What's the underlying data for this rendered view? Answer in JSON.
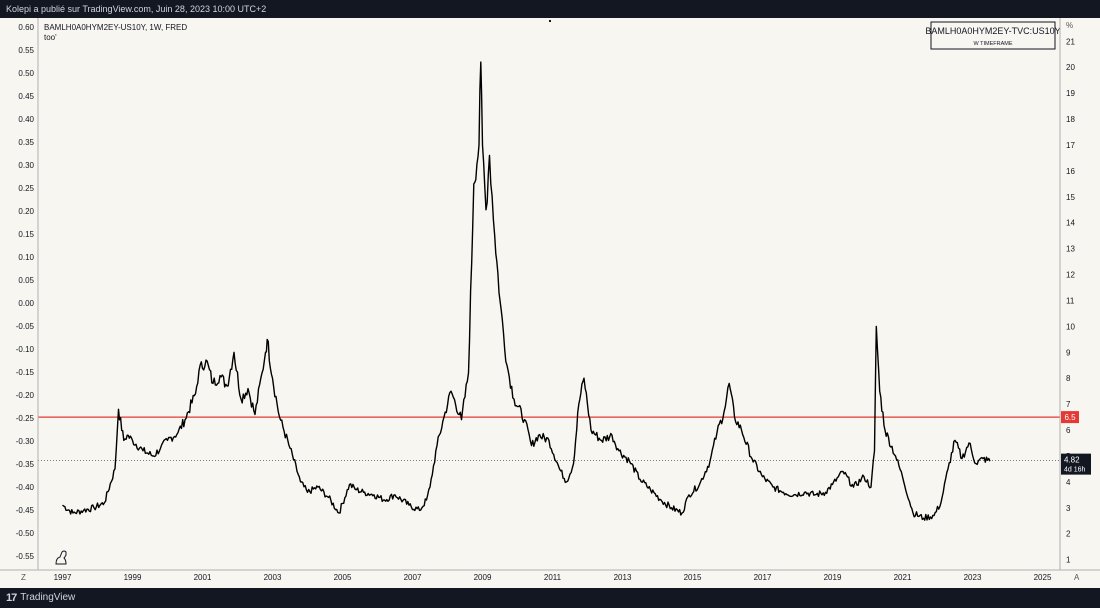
{
  "header": {
    "publish_text": "Kolepi a publié sur TradingView.com, Juin 28, 2023 10:00 UTC+2"
  },
  "footer": {
    "logo_mark": "17",
    "logo_text": "TradingView"
  },
  "chart_data": {
    "type": "line",
    "symbol": "BAMLH0A0HYM2EY-US10Y, 1W, FRED",
    "sub_label": "too'",
    "legend_title": "BAMLH0A0HYM2EY-TVC:US10Y",
    "legend_subtitle": "W TIMEFRAME",
    "left_axis": {
      "ticks": [
        "0.60",
        "0.55",
        "0.50",
        "0.45",
        "0.40",
        "0.35",
        "0.30",
        "0.25",
        "0.20",
        "0.15",
        "0.10",
        "0.05",
        "0.00",
        "-0.05",
        "-0.10",
        "-0.15",
        "-0.20",
        "-0.25",
        "-0.30",
        "-0.35",
        "-0.40",
        "-0.45",
        "-0.50",
        "-0.55"
      ],
      "range": [
        -0.58,
        0.62
      ],
      "scale_label": "Z"
    },
    "right_axis": {
      "unit_label": "%",
      "ticks": [
        "21",
        "20",
        "19",
        "18",
        "17",
        "16",
        "15",
        "14",
        "13",
        "12",
        "11",
        "10",
        "9",
        "8",
        "7",
        "6",
        "5",
        "4",
        "3",
        "2",
        "1"
      ],
      "range": [
        0.6,
        21.9
      ],
      "scale_label": "A"
    },
    "x_axis": {
      "ticks": [
        "1997",
        "1999",
        "2001",
        "2003",
        "2005",
        "2007",
        "2009",
        "2011",
        "2013",
        "2015",
        "2017",
        "2019",
        "2021",
        "2023",
        "2025"
      ],
      "range": [
        1996.3,
        2025.5
      ]
    },
    "horizontal_line": {
      "value": 6.5,
      "label": "6.5",
      "color": "#e53935"
    },
    "last_value": {
      "value": 4.82,
      "label": "4.82",
      "countdown": "4d 16h"
    },
    "line_color": "#000000",
    "grid": false,
    "series": [
      {
        "x": [
          1997.0,
          1997.3,
          1997.6,
          1997.9,
          1998.2,
          1998.5,
          1998.6,
          1998.75,
          1998.85,
          1999.0,
          1999.3,
          1999.6,
          1999.8,
          2000.0,
          2000.3,
          2000.5,
          2000.8,
          2000.9,
          2001.1,
          2001.3,
          2001.5,
          2001.7,
          2001.9,
          2002.1,
          2002.3,
          2002.5,
          2002.7,
          2002.8,
          2002.85,
          2003.0,
          2003.2,
          2003.5,
          2003.8,
          2004.0,
          2004.3,
          2004.6,
          2004.9,
          2005.2,
          2005.4,
          2005.6,
          2005.9,
          2006.2,
          2006.5,
          2006.9,
          2007.2,
          2007.4,
          2007.5,
          2007.7,
          2007.9,
          2008.1,
          2008.4,
          2008.6,
          2008.75,
          2008.9,
          2008.95,
          2009.0,
          2009.1,
          2009.2,
          2009.35,
          2009.5,
          2009.7,
          2009.9,
          2010.2,
          2010.4,
          2010.6,
          2010.9,
          2011.2,
          2011.4,
          2011.6,
          2011.75,
          2011.9,
          2012.1,
          2012.4,
          2012.7,
          2012.9,
          2013.2,
          2013.5,
          2013.8,
          2014.1,
          2014.4,
          2014.7,
          2014.9,
          2015.2,
          2015.5,
          2015.7,
          2015.9,
          2016.05,
          2016.2,
          2016.4,
          2016.7,
          2017.0,
          2017.3,
          2017.6,
          2017.9,
          2018.2,
          2018.5,
          2018.8,
          2019.0,
          2019.3,
          2019.6,
          2019.9,
          2020.1,
          2020.2,
          2020.25,
          2020.35,
          2020.5,
          2020.8,
          2021.0,
          2021.3,
          2021.6,
          2021.9,
          2022.1,
          2022.3,
          2022.5,
          2022.7,
          2022.9,
          2023.1,
          2023.3,
          2023.5
        ],
        "values": [
          3.1,
          2.8,
          2.9,
          3.0,
          3.2,
          4.5,
          6.8,
          5.6,
          5.8,
          5.6,
          5.2,
          5.0,
          5.3,
          5.6,
          5.9,
          6.4,
          7.4,
          8.3,
          8.7,
          7.8,
          8.1,
          7.7,
          9.0,
          7.2,
          7.6,
          6.6,
          8.2,
          9.0,
          9.5,
          8.0,
          6.5,
          5.3,
          4.0,
          3.6,
          3.8,
          3.4,
          2.8,
          3.9,
          3.7,
          3.6,
          3.5,
          3.3,
          3.5,
          3.1,
          2.9,
          3.3,
          3.8,
          5.4,
          6.5,
          7.5,
          6.4,
          8.2,
          15.5,
          17.0,
          20.2,
          17.0,
          14.5,
          16.6,
          13.5,
          11.0,
          8.5,
          7.2,
          6.4,
          5.4,
          5.8,
          5.6,
          4.5,
          4.0,
          4.7,
          7.0,
          8.0,
          6.0,
          5.6,
          5.8,
          5.2,
          4.8,
          4.1,
          3.7,
          3.3,
          3.0,
          2.8,
          3.5,
          3.9,
          4.8,
          5.9,
          6.7,
          7.8,
          6.5,
          6.0,
          4.9,
          4.2,
          3.8,
          3.6,
          3.5,
          3.6,
          3.5,
          3.6,
          3.9,
          4.4,
          3.8,
          4.2,
          3.8,
          5.2,
          10.0,
          7.5,
          6.0,
          5.0,
          4.2,
          2.8,
          2.6,
          2.7,
          3.2,
          4.5,
          5.6,
          4.9,
          5.5,
          4.7,
          4.9,
          4.8
        ]
      }
    ]
  }
}
